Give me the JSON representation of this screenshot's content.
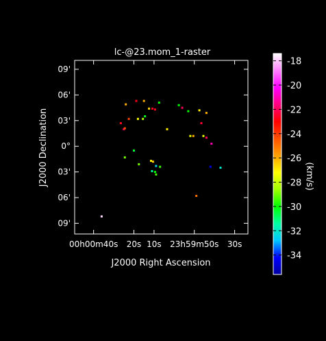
{
  "chart_data": {
    "type": "scatter",
    "title": "lc-@23.mom_1-raster",
    "xlabel": "J2000 Right Ascension",
    "ylabel": "J2000 Declination",
    "x_ticks": [
      {
        "value_s": 40,
        "label": "00h00m40s"
      },
      {
        "value_s": 20,
        "label": "20s"
      },
      {
        "value_s": 10,
        "label": "10s"
      },
      {
        "value_s": -10,
        "label": "23h59m50s"
      },
      {
        "value_s": -30,
        "label": "30s"
      }
    ],
    "y_ticks": [
      {
        "value_arcmin": 9,
        "label": "09'"
      },
      {
        "value_arcmin": 6,
        "label": "06'"
      },
      {
        "value_arcmin": 3,
        "label": "03'"
      },
      {
        "value_arcmin": 0,
        "label": "0°"
      },
      {
        "value_arcmin": -3,
        "label": "03'"
      },
      {
        "value_arcmin": -6,
        "label": "06'"
      },
      {
        "value_arcmin": -9,
        "label": "09'"
      }
    ],
    "xlim_s": [
      49.4,
      -36.6
    ],
    "ylim_arcmin": [
      -10.25,
      10.04
    ],
    "colorbar": {
      "label": "(km/s)",
      "range": [
        -35.6,
        -17.4
      ],
      "ticks": [
        -18,
        -20,
        -22,
        -24,
        -26,
        -28,
        -30,
        -32,
        -34
      ],
      "colormap": [
        "#0000a0",
        "#0000ff",
        "#00c8ff",
        "#00ffa0",
        "#00ff00",
        "#a0ff00",
        "#ffff00",
        "#ffa000",
        "#ff5000",
        "#ff0000",
        "#ff0080",
        "#ff00ff",
        "#ff80ff",
        "#ffffff"
      ]
    },
    "points": [
      {
        "ra_s": 24.0,
        "dec_arcmin": 4.9,
        "v": -26.0
      },
      {
        "ra_s": 18.8,
        "dec_arcmin": 5.3,
        "v": -22.7
      },
      {
        "ra_s": 15.0,
        "dec_arcmin": 5.3,
        "v": -26.0
      },
      {
        "ra_s": 12.5,
        "dec_arcmin": 4.4,
        "v": -26.6
      },
      {
        "ra_s": 10.8,
        "dec_arcmin": 4.4,
        "v": -22.6
      },
      {
        "ra_s": 9.5,
        "dec_arcmin": 4.3,
        "v": -22.7
      },
      {
        "ra_s": 7.5,
        "dec_arcmin": 5.1,
        "v": -29.9
      },
      {
        "ra_s": -2.3,
        "dec_arcmin": 4.8,
        "v": -30.0
      },
      {
        "ra_s": -4.0,
        "dec_arcmin": 4.5,
        "v": -22.0
      },
      {
        "ra_s": -7.0,
        "dec_arcmin": 4.1,
        "v": -29.9
      },
      {
        "ra_s": -12.5,
        "dec_arcmin": 4.2,
        "v": -27.0
      },
      {
        "ra_s": -16.0,
        "dec_arcmin": 3.9,
        "v": -26.0
      },
      {
        "ra_s": 22.5,
        "dec_arcmin": 3.2,
        "v": -24.2
      },
      {
        "ra_s": 18.0,
        "dec_arcmin": 3.2,
        "v": -27.3
      },
      {
        "ra_s": 15.5,
        "dec_arcmin": 3.2,
        "v": -28.3
      },
      {
        "ra_s": 14.5,
        "dec_arcmin": 3.5,
        "v": -30.3
      },
      {
        "ra_s": 26.5,
        "dec_arcmin": 2.7,
        "v": -22.7
      },
      {
        "ra_s": 25.0,
        "dec_arcmin": 2.0,
        "v": -22.0
      },
      {
        "ra_s": 24.5,
        "dec_arcmin": 2.1,
        "v": -24.4
      },
      {
        "ra_s": 3.5,
        "dec_arcmin": 2.0,
        "v": -27.0
      },
      {
        "ra_s": -9.5,
        "dec_arcmin": 1.2,
        "v": -26.0
      },
      {
        "ra_s": -8.0,
        "dec_arcmin": 1.2,
        "v": -27.5
      },
      {
        "ra_s": -14.5,
        "dec_arcmin": 1.2,
        "v": -27.5
      },
      {
        "ra_s": -16.0,
        "dec_arcmin": 1.0,
        "v": -22.0
      },
      {
        "ra_s": -18.5,
        "dec_arcmin": 0.3,
        "v": -21.0
      },
      {
        "ra_s": 20.0,
        "dec_arcmin": -0.5,
        "v": -30.5
      },
      {
        "ra_s": 24.5,
        "dec_arcmin": -1.3,
        "v": -29.0
      },
      {
        "ra_s": 11.5,
        "dec_arcmin": -1.7,
        "v": -27.0
      },
      {
        "ra_s": 10.5,
        "dec_arcmin": -1.8,
        "v": -26.5
      },
      {
        "ra_s": 17.5,
        "dec_arcmin": -2.1,
        "v": -29.0
      },
      {
        "ra_s": 9.0,
        "dec_arcmin": -2.3,
        "v": -32.5
      },
      {
        "ra_s": 7.0,
        "dec_arcmin": -2.4,
        "v": -29.5
      },
      {
        "ra_s": 11.0,
        "dec_arcmin": -2.9,
        "v": -31.3
      },
      {
        "ra_s": 9.5,
        "dec_arcmin": -3.0,
        "v": -30.0
      },
      {
        "ra_s": 9.0,
        "dec_arcmin": -3.3,
        "v": -29.4
      },
      {
        "ra_s": -18.0,
        "dec_arcmin": -2.4,
        "v": -34.5
      },
      {
        "ra_s": -23.0,
        "dec_arcmin": -2.5,
        "v": -32.0
      },
      {
        "ra_s": -11.0,
        "dec_arcmin": -5.8,
        "v": -25.0
      },
      {
        "ra_s": 36.0,
        "dec_arcmin": -8.2,
        "v": -17.8
      },
      {
        "ra_s": -13.5,
        "dec_arcmin": 2.7,
        "v": -22.5
      }
    ]
  }
}
